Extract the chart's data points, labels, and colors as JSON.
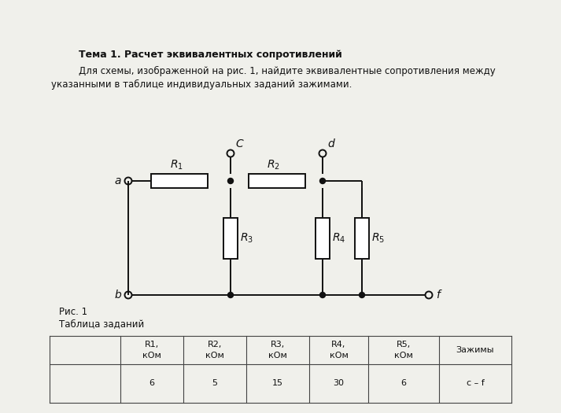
{
  "title": "Тема 1. Расчет эквивалентных сопротивлений",
  "text1": "Для схемы, изображенной на рис. 1, найдите эквивалентные сопротивления между",
  "text2": "указанными в таблице индивидуальных заданий зажимами.",
  "fig_label": "Рис. 1",
  "table_label": "Таблица заданий",
  "table_col0_header": "",
  "table_headers": [
    "R1,\nкОм",
    "R2,\nкОм",
    "R3,\nкОм",
    "R4,\nкОм",
    "R5,\nкОм",
    "Зажимы"
  ],
  "table_values": [
    "6",
    "5",
    "15",
    "30",
    "6",
    "c – f"
  ],
  "bg_color": "#f0f0eb",
  "line_color": "#111111",
  "title_bold": true,
  "title_fontsize": 9,
  "body_fontsize": 8.5,
  "table_fontsize": 8
}
